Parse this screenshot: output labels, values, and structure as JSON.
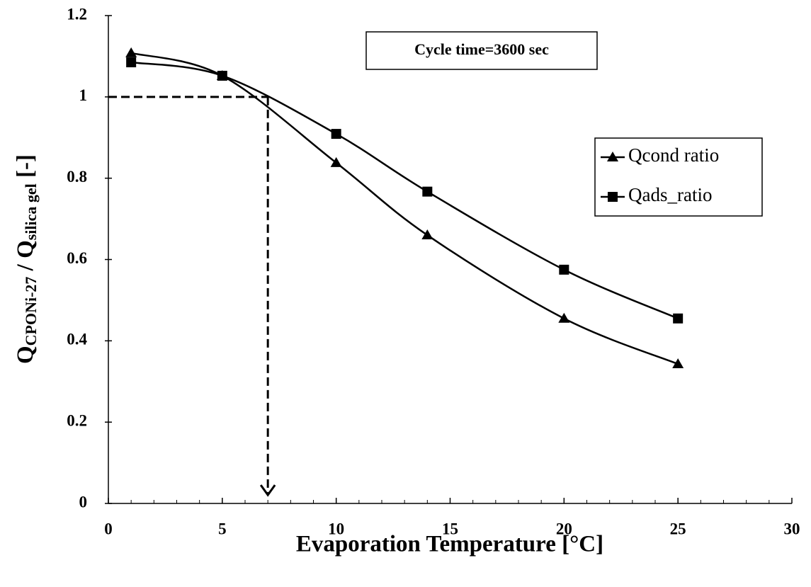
{
  "chart_data": {
    "type": "line",
    "xlabel": "Evaporation Temperature [°C]",
    "ylabel": [
      "Q",
      "CPONi-27",
      " / Q",
      "silica gel",
      " [-]"
    ],
    "annotation": "Cycle  time=3600 sec",
    "x": [
      1,
      5,
      10,
      14,
      20,
      25
    ],
    "series": [
      {
        "name": "Qcond ratio",
        "color": "#000000",
        "marker": "triangle",
        "values": [
          1.108,
          1.052,
          0.838,
          0.66,
          0.455,
          0.343
        ]
      },
      {
        "name": "Qads_ratio",
        "color": "#000000",
        "marker": "square",
        "values": [
          1.085,
          1.052,
          0.909,
          0.767,
          0.575,
          0.455
        ]
      }
    ],
    "reference": {
      "x": 7,
      "y": 1
    },
    "xlim": [
      0,
      30
    ],
    "xticks": [
      0,
      5,
      10,
      15,
      20,
      25,
      30
    ],
    "x_minor_step": 1,
    "ylim": [
      0,
      1.2
    ],
    "yticks": [
      0,
      0.2,
      0.4,
      0.6,
      0.8,
      1,
      1.2
    ],
    "grid": false,
    "legend": "right"
  }
}
